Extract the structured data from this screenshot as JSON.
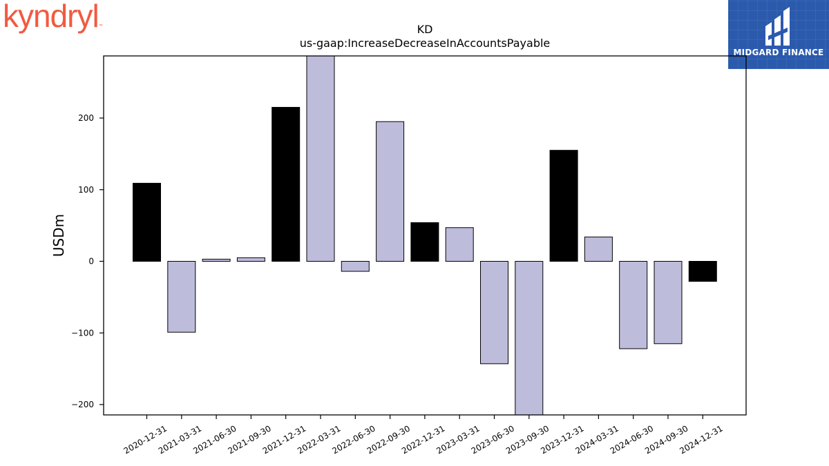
{
  "branding": {
    "company_logo_text": "kyndryl",
    "company_logo_tm": "™",
    "publisher_name": "MIDGARD FINANCE"
  },
  "colors": {
    "bar_highlight": "#000000",
    "bar_default": "#bebcdb",
    "bar_edge": "#000000",
    "logo_text": "#f15a40",
    "badge_bg": "#2b5aad"
  },
  "chart_data": {
    "type": "bar",
    "title": "KD",
    "subtitle": "us-gaap:IncreaseDecreaseInAccountsPayable",
    "xlabel": "",
    "ylabel": "USDm",
    "ylim": [
      -215,
      285
    ],
    "yticks": [
      -200,
      -100,
      0,
      100,
      200
    ],
    "ytick_labels": [
      "−200",
      "−100",
      "0",
      "100",
      "200"
    ],
    "grid": false,
    "categories": [
      "2020-12-31",
      "2021-03-31",
      "2021-06-30",
      "2021-09-30",
      "2021-12-31",
      "2022-03-31",
      "2022-06-30",
      "2022-09-30",
      "2022-12-31",
      "2023-03-31",
      "2023-06-30",
      "2023-09-30",
      "2023-12-31",
      "2024-03-31",
      "2024-06-30",
      "2024-09-30",
      "2024-12-31"
    ],
    "values": [
      109,
      -99,
      3,
      5,
      215,
      295,
      -14,
      195,
      54,
      47,
      -143,
      -225,
      155,
      34,
      -122,
      -115,
      -28
    ],
    "highlight": [
      true,
      false,
      false,
      false,
      true,
      false,
      false,
      false,
      true,
      false,
      false,
      false,
      true,
      false,
      false,
      false,
      true
    ]
  }
}
